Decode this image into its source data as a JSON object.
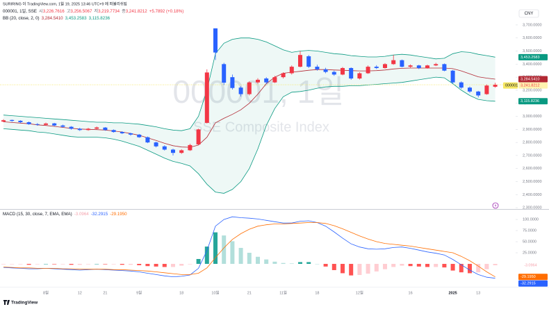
{
  "chart_data": {
    "type": "candlestick",
    "publisher": "SURIRING 이 TradingView.com, 1월 19, 2025 13:46 UTC+9 에 퍼블리쉬됨",
    "title": "000001, 1일, SSE",
    "watermark": [
      "000001, 1일",
      "SSE Composite Index"
    ],
    "currency": "CNY",
    "symbol_tag": "000001",
    "brand": "TradingView",
    "ohlc_letters": [
      "시",
      "고",
      "저",
      "종"
    ],
    "last_labels": {
      "open": "3,226.7616",
      "high": "3,256.5067",
      "low": "3,219.7734",
      "close": "3,241.8212"
    },
    "change_label": "+5.7892 (+0.18%)",
    "up_color": "#f23645",
    "down_color": "#2962ff",
    "categories": [
      null,
      null,
      null,
      null,
      null,
      "8월",
      null,
      null,
      null,
      "12",
      null,
      null,
      "21",
      null,
      null,
      null,
      "9월",
      null,
      null,
      null,
      null,
      "18",
      null,
      null,
      null,
      "10월",
      null,
      null,
      null,
      "21",
      null,
      null,
      null,
      "11월",
      null,
      null,
      null,
      "18",
      null,
      null,
      null,
      null,
      "12월",
      null,
      null,
      null,
      null,
      null,
      "16",
      null,
      null,
      null,
      null,
      "2025",
      null,
      null,
      "13",
      null,
      null
    ],
    "open": [
      2960,
      2972,
      2966,
      2955,
      2940,
      2935,
      2946,
      2930,
      2920,
      2905,
      2895,
      2905,
      2914,
      2895,
      2880,
      2870,
      2860,
      2840,
      2800,
      2770,
      2745,
      2720,
      2740,
      2785,
      2950,
      3674,
      3400,
      3300,
      3220,
      3170,
      3260,
      3290,
      3260,
      3300,
      3330,
      3380,
      3460,
      3380,
      3360,
      3340,
      3320,
      3370,
      3290,
      3330,
      3380,
      3370,
      3400,
      3430,
      3380,
      3390,
      3370,
      3390,
      3400,
      3350,
      3260,
      3220,
      3190,
      3170,
      3226.7616
    ],
    "high": [
      2978,
      2975,
      2970,
      2960,
      2948,
      2952,
      2950,
      2936,
      2925,
      2912,
      2912,
      2922,
      2918,
      2900,
      2886,
      2875,
      2865,
      2845,
      2806,
      2778,
      2752,
      2748,
      2790,
      2905,
      3360,
      3674,
      3410,
      3320,
      3230,
      3268,
      3292,
      3300,
      3310,
      3338,
      3390,
      3500,
      3470,
      3395,
      3372,
      3350,
      3378,
      3375,
      3338,
      3390,
      3392,
      3408,
      3470,
      3435,
      3398,
      3395,
      3396,
      3410,
      3405,
      3355,
      3268,
      3228,
      3195,
      3245,
      3256.5067
    ],
    "low": [
      2955,
      2958,
      2948,
      2935,
      2928,
      2930,
      2925,
      2915,
      2898,
      2888,
      2890,
      2900,
      2890,
      2875,
      2864,
      2852,
      2835,
      2795,
      2762,
      2738,
      2700,
      2712,
      2735,
      2780,
      2945,
      3432,
      3240,
      3205,
      3152,
      3160,
      3250,
      3248,
      3255,
      3290,
      3320,
      3375,
      3370,
      3350,
      3330,
      3310,
      3315,
      3280,
      3282,
      3325,
      3362,
      3365,
      3395,
      3375,
      3372,
      3362,
      3365,
      3385,
      3345,
      3250,
      3210,
      3180,
      3145,
      3165,
      3219.7734
    ],
    "close": [
      2970,
      2965,
      2955,
      2940,
      2935,
      2945,
      2930,
      2920,
      2905,
      2895,
      2905,
      2915,
      2895,
      2880,
      2870,
      2860,
      2840,
      2800,
      2770,
      2745,
      2720,
      2740,
      2780,
      2900,
      3336,
      3489,
      3258,
      3217,
      3170,
      3260,
      3280,
      3260,
      3300,
      3330,
      3380,
      3470,
      3380,
      3360,
      3340,
      3320,
      3370,
      3290,
      3330,
      3380,
      3370,
      3400,
      3430,
      3380,
      3390,
      3370,
      3390,
      3400,
      3350,
      3260,
      3220,
      3190,
      3160,
      3236,
      3241.8212
    ],
    "ylim": [
      2290,
      3838
    ],
    "yticks": [
      {
        "value": 2300,
        "label": "2,300.0000"
      },
      {
        "value": 2400,
        "label": "2,400.0000"
      },
      {
        "value": 2500,
        "label": "2,500.0000"
      },
      {
        "value": 2600,
        "label": "2,600.0000"
      },
      {
        "value": 2700,
        "label": "2,700.0000"
      },
      {
        "value": 2800,
        "label": "2,800.0000"
      },
      {
        "value": 2900,
        "label": "2,900.0000"
      },
      {
        "value": 3000,
        "label": "3,000.0000"
      },
      {
        "value": 3100,
        "label": "3,100.0000"
      },
      {
        "value": 3200,
        "label": "3,200.0000"
      },
      {
        "value": 3300,
        "label": "3,300.0000"
      },
      {
        "value": 3400,
        "label": "3,400.0000"
      },
      {
        "value": 3500,
        "label": "3,500.0000"
      },
      {
        "value": 3600,
        "label": "3,600.0000"
      },
      {
        "value": 3700,
        "label": "3,700.0000"
      }
    ],
    "bb": {
      "name": "BB (20, close, 2, 0)",
      "fill": "rgba(8,153,129,0.07)",
      "series": [
        {
          "color": "#b22833",
          "last_label": "3,284.5410",
          "values": [
            2958,
            2953,
            2948,
            2943,
            2935,
            2930,
            2923,
            2915,
            2908,
            2903,
            2900,
            2898,
            2895,
            2888,
            2880,
            2868,
            2855,
            2835,
            2815,
            2793,
            2775,
            2765,
            2763,
            2780,
            2840,
            2950,
            2985,
            3015,
            3050,
            3100,
            3170,
            3250,
            3300,
            3330,
            3338,
            3345,
            3353,
            3358,
            3358,
            3355,
            3353,
            3350,
            3348,
            3348,
            3350,
            3355,
            3363,
            3368,
            3370,
            3370,
            3370,
            3370,
            3370,
            3365,
            3348,
            3325,
            3303,
            3293,
            3284.541
          ]
        },
        {
          "color": "#089981",
          "last_label": "3,453.2583",
          "values": [
            3010,
            3005,
            3000,
            2995,
            2990,
            2985,
            2980,
            2975,
            2970,
            2965,
            2960,
            2955,
            2955,
            2950,
            2950,
            2945,
            2940,
            2930,
            2920,
            2905,
            2895,
            2890,
            2905,
            3000,
            3200,
            3480,
            3560,
            3590,
            3600,
            3600,
            3590,
            3570,
            3540,
            3510,
            3490,
            3500,
            3505,
            3500,
            3490,
            3480,
            3475,
            3465,
            3460,
            3455,
            3455,
            3460,
            3470,
            3475,
            3470,
            3460,
            3450,
            3440,
            3445,
            3480,
            3495,
            3490,
            3475,
            3465,
            3453.2583
          ]
        },
        {
          "color": "#089981",
          "last_label": "3,115.8236",
          "values": [
            2905,
            2900,
            2895,
            2890,
            2880,
            2875,
            2865,
            2855,
            2845,
            2840,
            2840,
            2840,
            2835,
            2825,
            2810,
            2790,
            2770,
            2740,
            2710,
            2680,
            2655,
            2640,
            2620,
            2560,
            2480,
            2420,
            2410,
            2440,
            2500,
            2600,
            2750,
            2930,
            3060,
            3150,
            3185,
            3190,
            3200,
            3215,
            3225,
            3230,
            3230,
            3235,
            3235,
            3240,
            3245,
            3250,
            3255,
            3260,
            3270,
            3280,
            3290,
            3300,
            3295,
            3250,
            3200,
            3160,
            3130,
            3120,
            3115.8236
          ]
        }
      ]
    },
    "macd": {
      "name": "MACD (15, 30, close, 7, EMA, EMA)",
      "ylim": [
        -50,
        122
      ],
      "yticks": [
        {
          "value": 25,
          "label": "25.0000"
        },
        {
          "value": 50,
          "label": "50.0000"
        },
        {
          "value": 75,
          "label": "75.0000"
        },
        {
          "value": 100,
          "label": "100.0000"
        }
      ],
      "histogram": {
        "colors": [
          "#26a69a",
          "#b2dfdb",
          "#ffcdd2",
          "#ff5252"
        ],
        "last_label": "-3.0964",
        "values": [
          -1,
          -1,
          -1,
          -2,
          -1,
          0,
          -1,
          -1,
          -2,
          -2,
          -1,
          0,
          -1,
          -1,
          -2,
          -2,
          -3,
          -5,
          -6,
          -7,
          -7,
          -4,
          -1,
          11,
          39,
          71,
          64,
          51,
          36,
          25,
          16,
          10,
          5,
          2,
          1,
          4,
          4,
          0,
          -6,
          -14,
          -21,
          -26,
          -25,
          -22,
          -17,
          -12,
          -7,
          -4,
          -5,
          -6,
          -7,
          -7,
          -8,
          -15,
          -19,
          -21,
          -19,
          -12,
          -3.0964
        ]
      },
      "macd_line": {
        "color": "#2962ff",
        "last_label": "-32.2915",
        "values": [
          -8,
          -9,
          -10,
          -11,
          -11,
          -10,
          -11,
          -12,
          -13,
          -14,
          -13,
          -12,
          -13,
          -14,
          -15,
          -16,
          -18,
          -21,
          -24,
          -27,
          -29,
          -28,
          -25,
          -10,
          30,
          85,
          100,
          106,
          104,
          103,
          101,
          98,
          95,
          92,
          92,
          96,
          97,
          93,
          85,
          72,
          58,
          45,
          38,
          34,
          33,
          34,
          37,
          38,
          35,
          31,
          27,
          24,
          20,
          10,
          -2,
          -14,
          -24,
          -30,
          -32.2915
        ]
      },
      "signal_line": {
        "color": "#ff6d00",
        "last_label": "-29.1950",
        "values": [
          -7,
          -8,
          -9,
          -9,
          -10,
          -10,
          -10,
          -11,
          -11,
          -12,
          -12,
          -12,
          -12,
          -13,
          -13,
          -14,
          -15,
          -16,
          -18,
          -20,
          -22,
          -24,
          -24,
          -21,
          -9,
          14,
          36,
          55,
          68,
          78,
          85,
          88,
          90,
          90,
          91,
          92,
          93,
          93,
          91,
          86,
          79,
          71,
          63,
          56,
          50,
          46,
          44,
          42,
          40,
          37,
          34,
          31,
          28,
          25,
          17,
          7,
          -5,
          -18,
          -29.195
        ]
      }
    }
  }
}
